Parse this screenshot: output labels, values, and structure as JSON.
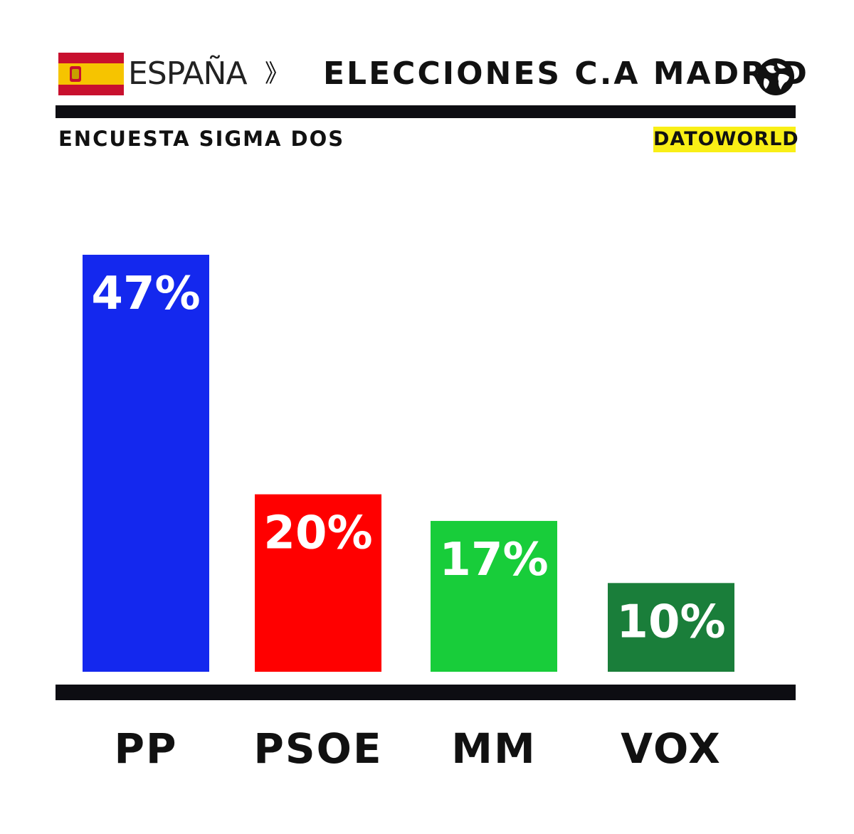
{
  "header": {
    "country": "ESPAÑA",
    "separator": "》",
    "title": "ELECCIONES C.A MADRID",
    "flag_icon": "spain-flag-icon",
    "globe_icon": "globe-icon"
  },
  "subtitle": "ENCUESTA SIGMA DOS",
  "brand": "DATOWORLD",
  "colors": {
    "flag_red": "#c8102e",
    "flag_yellow": "#f6c400",
    "brand_bg": "#f9ef16",
    "rule": "#0d0d12"
  },
  "chart_data": {
    "type": "bar",
    "categories": [
      "PP",
      "PSOE",
      "MM",
      "VOX"
    ],
    "values": [
      47,
      20,
      17,
      10
    ],
    "data_labels": [
      "47%",
      "20%",
      "17%",
      "10%"
    ],
    "colors": [
      "#1428ee",
      "#ff0000",
      "#18cd3a",
      "#1a7e3a"
    ],
    "ylim": [
      0,
      47
    ],
    "grid": false,
    "legend": "none"
  }
}
